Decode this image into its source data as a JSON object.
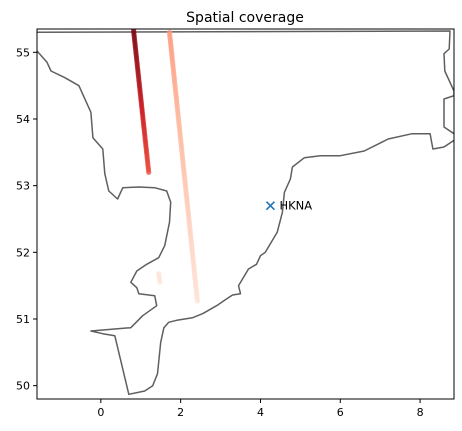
{
  "chart_data": {
    "type": "scatter",
    "title": "Spatial coverage",
    "xlabel": "",
    "ylabel": "",
    "xlim": [
      -1.6,
      8.85
    ],
    "ylim": [
      49.8,
      55.35
    ],
    "xticks": [
      0,
      2,
      4,
      6,
      8
    ],
    "yticks": [
      50,
      51,
      52,
      53,
      54,
      55
    ],
    "grid": false,
    "colors": {
      "coastline": "#5f5f5f",
      "station_marker": "#1f77b4",
      "colormap": "Reds"
    },
    "coastline": [
      [
        -1.6,
        55.3
      ],
      [
        8.75,
        55.32
      ],
      [
        8.73,
        55.05
      ],
      [
        8.6,
        54.98
      ],
      [
        8.62,
        54.72
      ],
      [
        8.85,
        54.42
      ],
      [
        8.85,
        54.35
      ],
      [
        8.6,
        54.3
      ],
      [
        8.6,
        53.88
      ],
      [
        8.85,
        53.78
      ],
      [
        8.9,
        53.7
      ],
      [
        8.6,
        53.58
      ],
      [
        8.32,
        53.55
      ],
      [
        8.25,
        53.78
      ],
      [
        7.8,
        53.78
      ],
      [
        7.2,
        53.7
      ],
      [
        6.6,
        53.52
      ],
      [
        6.0,
        53.45
      ],
      [
        5.5,
        53.45
      ],
      [
        5.1,
        53.42
      ],
      [
        4.8,
        53.28
      ],
      [
        4.75,
        53.1
      ],
      [
        4.6,
        52.9
      ],
      [
        4.55,
        52.6
      ],
      [
        4.42,
        52.3
      ],
      [
        4.12,
        52.0
      ],
      [
        4.0,
        51.95
      ],
      [
        3.9,
        51.82
      ],
      [
        3.7,
        51.75
      ],
      [
        3.55,
        51.6
      ],
      [
        3.45,
        51.5
      ],
      [
        3.5,
        51.38
      ],
      [
        3.3,
        51.36
      ],
      [
        3.1,
        51.28
      ],
      [
        2.9,
        51.2
      ],
      [
        2.55,
        51.08
      ],
      [
        2.3,
        51.02
      ],
      [
        1.9,
        50.98
      ],
      [
        1.7,
        50.95
      ],
      [
        1.58,
        50.87
      ],
      [
        1.5,
        50.65
      ],
      [
        1.42,
        50.18
      ],
      [
        1.3,
        50.0
      ],
      [
        1.1,
        49.92
      ],
      [
        0.7,
        49.87
      ],
      [
        0.35,
        50.75
      ],
      [
        0.05,
        50.78
      ],
      [
        -0.25,
        50.82
      ],
      [
        0.75,
        50.87
      ],
      [
        1.05,
        51.05
      ],
      [
        1.4,
        51.2
      ],
      [
        1.35,
        51.35
      ],
      [
        0.95,
        51.38
      ],
      [
        0.9,
        51.47
      ],
      [
        0.75,
        51.55
      ],
      [
        0.9,
        51.72
      ],
      [
        1.15,
        51.82
      ],
      [
        1.45,
        51.92
      ],
      [
        1.6,
        52.1
      ],
      [
        1.72,
        52.45
      ],
      [
        1.75,
        52.75
      ],
      [
        1.65,
        52.92
      ],
      [
        1.35,
        52.97
      ],
      [
        0.95,
        52.98
      ],
      [
        0.55,
        52.97
      ],
      [
        0.42,
        52.8
      ],
      [
        0.2,
        52.92
      ],
      [
        0.1,
        53.18
      ],
      [
        0.05,
        53.55
      ],
      [
        -0.2,
        53.72
      ],
      [
        -0.25,
        54.1
      ],
      [
        -0.55,
        54.5
      ],
      [
        -0.9,
        54.62
      ],
      [
        -1.25,
        54.72
      ],
      [
        -1.35,
        54.85
      ],
      [
        -1.6,
        55.02
      ]
    ],
    "tracks": [
      {
        "x_start": 0.82,
        "y_start": 55.33,
        "x_end": 1.2,
        "y_end": 53.2,
        "intensity_start": 0.95,
        "intensity_end": 0.6
      },
      {
        "x_start": 1.72,
        "y_start": 55.3,
        "x_end": 2.42,
        "y_end": 51.27,
        "intensity_start": 0.35,
        "intensity_end": 0.08
      },
      {
        "x_start": 1.45,
        "y_start": 51.68,
        "x_end": 1.48,
        "y_end": 51.55,
        "intensity_start": 0.08,
        "intensity_end": 0.06
      }
    ],
    "station": {
      "label": "HKNA",
      "x": 4.25,
      "y": 52.7
    }
  }
}
